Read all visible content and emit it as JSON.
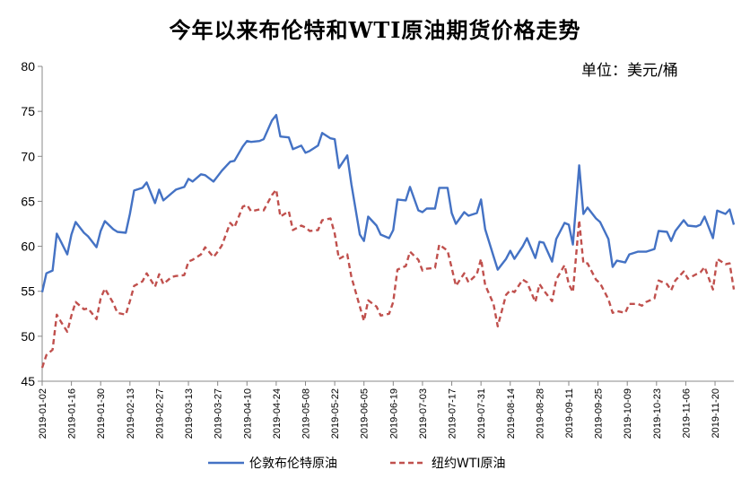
{
  "chart_data": {
    "type": "line",
    "title": "今年以来布伦特和WTI原油期货价格走势",
    "unit_label": "单位：美元/桶",
    "ylim": [
      45,
      80
    ],
    "yticks": [
      "45",
      "50",
      "55",
      "60",
      "65",
      "70",
      "75",
      "80"
    ],
    "xticks": [
      "2019-01-02",
      "2019-01-16",
      "2019-01-30",
      "2019-02-13",
      "2019-02-27",
      "2019-03-13",
      "2019-03-27",
      "2019-04-10",
      "2019-04-24",
      "2019-05-08",
      "2019-05-22",
      "2019-06-05",
      "2019-06-19",
      "2019-07-03",
      "2019-07-17",
      "2019-07-31",
      "2019-08-14",
      "2019-08-28",
      "2019-09-11",
      "2019-09-25",
      "2019-10-09",
      "2019-10-23",
      "2019-11-06",
      "2019-11-20"
    ],
    "grid": false,
    "legend_position": "bottom",
    "series": [
      {
        "name": "伦敦布伦特原油",
        "color": "#4472c4",
        "dash": "solid",
        "points": [
          [
            "2019-01-02",
            54.9
          ],
          [
            "2019-01-04",
            57.0
          ],
          [
            "2019-01-07",
            57.3
          ],
          [
            "2019-01-09",
            61.4
          ],
          [
            "2019-01-11",
            60.5
          ],
          [
            "2019-01-14",
            59.1
          ],
          [
            "2019-01-16",
            61.3
          ],
          [
            "2019-01-18",
            62.7
          ],
          [
            "2019-01-22",
            61.5
          ],
          [
            "2019-01-24",
            61.1
          ],
          [
            "2019-01-28",
            59.9
          ],
          [
            "2019-01-30",
            61.7
          ],
          [
            "2019-02-01",
            62.8
          ],
          [
            "2019-02-05",
            61.9
          ],
          [
            "2019-02-07",
            61.6
          ],
          [
            "2019-02-11",
            61.5
          ],
          [
            "2019-02-13",
            63.6
          ],
          [
            "2019-02-15",
            66.2
          ],
          [
            "2019-02-19",
            66.5
          ],
          [
            "2019-02-21",
            67.1
          ],
          [
            "2019-02-25",
            64.8
          ],
          [
            "2019-02-27",
            66.3
          ],
          [
            "2019-03-01",
            65.1
          ],
          [
            "2019-03-05",
            65.9
          ],
          [
            "2019-03-07",
            66.3
          ],
          [
            "2019-03-11",
            66.6
          ],
          [
            "2019-03-13",
            67.5
          ],
          [
            "2019-03-15",
            67.2
          ],
          [
            "2019-03-19",
            68.0
          ],
          [
            "2019-03-21",
            67.9
          ],
          [
            "2019-03-25",
            67.2
          ],
          [
            "2019-03-27",
            67.8
          ],
          [
            "2019-03-29",
            68.4
          ],
          [
            "2019-04-02",
            69.4
          ],
          [
            "2019-04-04",
            69.5
          ],
          [
            "2019-04-08",
            71.1
          ],
          [
            "2019-04-10",
            71.7
          ],
          [
            "2019-04-12",
            71.6
          ],
          [
            "2019-04-16",
            71.7
          ],
          [
            "2019-04-18",
            71.9
          ],
          [
            "2019-04-22",
            74.0
          ],
          [
            "2019-04-24",
            74.6
          ],
          [
            "2019-04-26",
            72.2
          ],
          [
            "2019-04-30",
            72.1
          ],
          [
            "2019-05-02",
            70.8
          ],
          [
            "2019-05-06",
            71.2
          ],
          [
            "2019-05-08",
            70.4
          ],
          [
            "2019-05-10",
            70.6
          ],
          [
            "2019-05-14",
            71.2
          ],
          [
            "2019-05-16",
            72.6
          ],
          [
            "2019-05-20",
            72.0
          ],
          [
            "2019-05-22",
            71.9
          ],
          [
            "2019-05-24",
            68.7
          ],
          [
            "2019-05-28",
            70.1
          ],
          [
            "2019-05-30",
            66.9
          ],
          [
            "2019-06-03",
            61.3
          ],
          [
            "2019-06-05",
            60.6
          ],
          [
            "2019-06-07",
            63.3
          ],
          [
            "2019-06-11",
            62.3
          ],
          [
            "2019-06-13",
            61.3
          ],
          [
            "2019-06-17",
            60.9
          ],
          [
            "2019-06-19",
            61.8
          ],
          [
            "2019-06-21",
            65.2
          ],
          [
            "2019-06-25",
            65.1
          ],
          [
            "2019-06-27",
            66.6
          ],
          [
            "2019-07-01",
            64.0
          ],
          [
            "2019-07-03",
            63.8
          ],
          [
            "2019-07-05",
            64.2
          ],
          [
            "2019-07-09",
            64.2
          ],
          [
            "2019-07-11",
            66.5
          ],
          [
            "2019-07-15",
            66.5
          ],
          [
            "2019-07-17",
            63.7
          ],
          [
            "2019-07-19",
            62.5
          ],
          [
            "2019-07-23",
            63.8
          ],
          [
            "2019-07-25",
            63.4
          ],
          [
            "2019-07-29",
            63.7
          ],
          [
            "2019-07-31",
            65.2
          ],
          [
            "2019-08-02",
            61.9
          ],
          [
            "2019-08-06",
            58.9
          ],
          [
            "2019-08-08",
            57.4
          ],
          [
            "2019-08-12",
            58.6
          ],
          [
            "2019-08-14",
            59.5
          ],
          [
            "2019-08-16",
            58.6
          ],
          [
            "2019-08-20",
            60.0
          ],
          [
            "2019-08-22",
            60.9
          ],
          [
            "2019-08-26",
            58.7
          ],
          [
            "2019-08-28",
            60.5
          ],
          [
            "2019-08-30",
            60.4
          ],
          [
            "2019-09-03",
            58.3
          ],
          [
            "2019-09-05",
            60.8
          ],
          [
            "2019-09-09",
            62.6
          ],
          [
            "2019-09-11",
            62.4
          ],
          [
            "2019-09-13",
            60.2
          ],
          [
            "2019-09-16",
            69.0
          ],
          [
            "2019-09-18",
            63.6
          ],
          [
            "2019-09-20",
            64.3
          ],
          [
            "2019-09-24",
            63.1
          ],
          [
            "2019-09-26",
            62.7
          ],
          [
            "2019-09-30",
            60.8
          ],
          [
            "2019-10-02",
            57.7
          ],
          [
            "2019-10-04",
            58.4
          ],
          [
            "2019-10-08",
            58.2
          ],
          [
            "2019-10-10",
            59.1
          ],
          [
            "2019-10-14",
            59.4
          ],
          [
            "2019-10-16",
            59.4
          ],
          [
            "2019-10-18",
            59.4
          ],
          [
            "2019-10-22",
            59.7
          ],
          [
            "2019-10-24",
            61.7
          ],
          [
            "2019-10-28",
            61.6
          ],
          [
            "2019-10-30",
            60.6
          ],
          [
            "2019-11-01",
            61.7
          ],
          [
            "2019-11-05",
            62.9
          ],
          [
            "2019-11-07",
            62.3
          ],
          [
            "2019-11-11",
            62.2
          ],
          [
            "2019-11-13",
            62.4
          ],
          [
            "2019-11-15",
            63.3
          ],
          [
            "2019-11-19",
            60.9
          ],
          [
            "2019-11-21",
            63.97
          ],
          [
            "2019-11-25",
            63.6
          ],
          [
            "2019-11-27",
            64.1
          ],
          [
            "2019-11-29",
            62.4
          ]
        ]
      },
      {
        "name": "纽约WTI原油",
        "color": "#c0504d",
        "dash": "dashed",
        "points": [
          [
            "2019-01-02",
            46.5
          ],
          [
            "2019-01-04",
            47.9
          ],
          [
            "2019-01-07",
            48.5
          ],
          [
            "2019-01-09",
            52.4
          ],
          [
            "2019-01-11",
            51.6
          ],
          [
            "2019-01-14",
            50.5
          ],
          [
            "2019-01-16",
            52.3
          ],
          [
            "2019-01-18",
            53.8
          ],
          [
            "2019-01-22",
            53.0
          ],
          [
            "2019-01-24",
            53.1
          ],
          [
            "2019-01-28",
            51.9
          ],
          [
            "2019-01-30",
            54.2
          ],
          [
            "2019-02-01",
            55.3
          ],
          [
            "2019-02-05",
            53.7
          ],
          [
            "2019-02-07",
            52.6
          ],
          [
            "2019-02-11",
            52.4
          ],
          [
            "2019-02-13",
            53.9
          ],
          [
            "2019-02-15",
            55.6
          ],
          [
            "2019-02-19",
            56.1
          ],
          [
            "2019-02-21",
            57.0
          ],
          [
            "2019-02-25",
            55.5
          ],
          [
            "2019-02-27",
            56.9
          ],
          [
            "2019-03-01",
            55.8
          ],
          [
            "2019-03-05",
            56.6
          ],
          [
            "2019-03-07",
            56.7
          ],
          [
            "2019-03-11",
            56.8
          ],
          [
            "2019-03-13",
            58.3
          ],
          [
            "2019-03-15",
            58.5
          ],
          [
            "2019-03-19",
            59.1
          ],
          [
            "2019-03-21",
            59.9
          ],
          [
            "2019-03-25",
            58.8
          ],
          [
            "2019-03-27",
            59.4
          ],
          [
            "2019-03-29",
            60.1
          ],
          [
            "2019-04-02",
            62.6
          ],
          [
            "2019-04-04",
            62.1
          ],
          [
            "2019-04-08",
            64.4
          ],
          [
            "2019-04-10",
            64.6
          ],
          [
            "2019-04-12",
            63.9
          ],
          [
            "2019-04-16",
            64.1
          ],
          [
            "2019-04-18",
            64.0
          ],
          [
            "2019-04-22",
            65.7
          ],
          [
            "2019-04-24",
            66.3
          ],
          [
            "2019-04-26",
            63.3
          ],
          [
            "2019-04-30",
            63.9
          ],
          [
            "2019-05-02",
            61.8
          ],
          [
            "2019-05-06",
            62.3
          ],
          [
            "2019-05-08",
            62.1
          ],
          [
            "2019-05-10",
            61.7
          ],
          [
            "2019-05-14",
            61.8
          ],
          [
            "2019-05-16",
            62.9
          ],
          [
            "2019-05-20",
            63.1
          ],
          [
            "2019-05-22",
            61.4
          ],
          [
            "2019-05-24",
            58.6
          ],
          [
            "2019-05-28",
            59.1
          ],
          [
            "2019-05-30",
            56.6
          ],
          [
            "2019-06-03",
            53.3
          ],
          [
            "2019-06-05",
            51.7
          ],
          [
            "2019-06-07",
            53.99
          ],
          [
            "2019-06-11",
            53.3
          ],
          [
            "2019-06-13",
            52.3
          ],
          [
            "2019-06-17",
            52.5
          ],
          [
            "2019-06-19",
            53.8
          ],
          [
            "2019-06-21",
            57.4
          ],
          [
            "2019-06-25",
            57.8
          ],
          [
            "2019-06-27",
            59.4
          ],
          [
            "2019-07-01",
            58.5
          ],
          [
            "2019-07-03",
            57.3
          ],
          [
            "2019-07-05",
            57.5
          ],
          [
            "2019-07-09",
            57.6
          ],
          [
            "2019-07-11",
            60.2
          ],
          [
            "2019-07-15",
            59.5
          ],
          [
            "2019-07-17",
            57.6
          ],
          [
            "2019-07-19",
            55.6
          ],
          [
            "2019-07-23",
            57.0
          ],
          [
            "2019-07-25",
            56.0
          ],
          [
            "2019-07-29",
            56.9
          ],
          [
            "2019-07-31",
            58.6
          ],
          [
            "2019-08-02",
            55.7
          ],
          [
            "2019-08-06",
            53.6
          ],
          [
            "2019-08-08",
            51.1
          ],
          [
            "2019-08-12",
            54.6
          ],
          [
            "2019-08-14",
            55.1
          ],
          [
            "2019-08-16",
            54.9
          ],
          [
            "2019-08-20",
            56.3
          ],
          [
            "2019-08-22",
            56.0
          ],
          [
            "2019-08-26",
            53.8
          ],
          [
            "2019-08-28",
            55.8
          ],
          [
            "2019-08-30",
            55.1
          ],
          [
            "2019-09-03",
            53.9
          ],
          [
            "2019-09-05",
            56.3
          ],
          [
            "2019-09-09",
            57.9
          ],
          [
            "2019-09-11",
            55.8
          ],
          [
            "2019-09-13",
            54.9
          ],
          [
            "2019-09-16",
            62.9
          ],
          [
            "2019-09-18",
            58.1
          ],
          [
            "2019-09-20",
            58.1
          ],
          [
            "2019-09-24",
            56.3
          ],
          [
            "2019-09-26",
            55.9
          ],
          [
            "2019-09-30",
            54.1
          ],
          [
            "2019-10-02",
            52.6
          ],
          [
            "2019-10-04",
            52.8
          ],
          [
            "2019-10-08",
            52.6
          ],
          [
            "2019-10-10",
            53.6
          ],
          [
            "2019-10-14",
            53.6
          ],
          [
            "2019-10-16",
            53.4
          ],
          [
            "2019-10-18",
            53.8
          ],
          [
            "2019-10-22",
            54.2
          ],
          [
            "2019-10-24",
            56.2
          ],
          [
            "2019-10-28",
            55.8
          ],
          [
            "2019-10-30",
            55.1
          ],
          [
            "2019-11-01",
            56.2
          ],
          [
            "2019-11-05",
            57.2
          ],
          [
            "2019-11-07",
            56.4
          ],
          [
            "2019-11-11",
            56.9
          ],
          [
            "2019-11-13",
            57.1
          ],
          [
            "2019-11-15",
            57.7
          ],
          [
            "2019-11-19",
            55.2
          ],
          [
            "2019-11-21",
            58.6
          ],
          [
            "2019-11-25",
            58.0
          ],
          [
            "2019-11-27",
            58.1
          ],
          [
            "2019-11-29",
            55.2
          ]
        ]
      }
    ]
  }
}
